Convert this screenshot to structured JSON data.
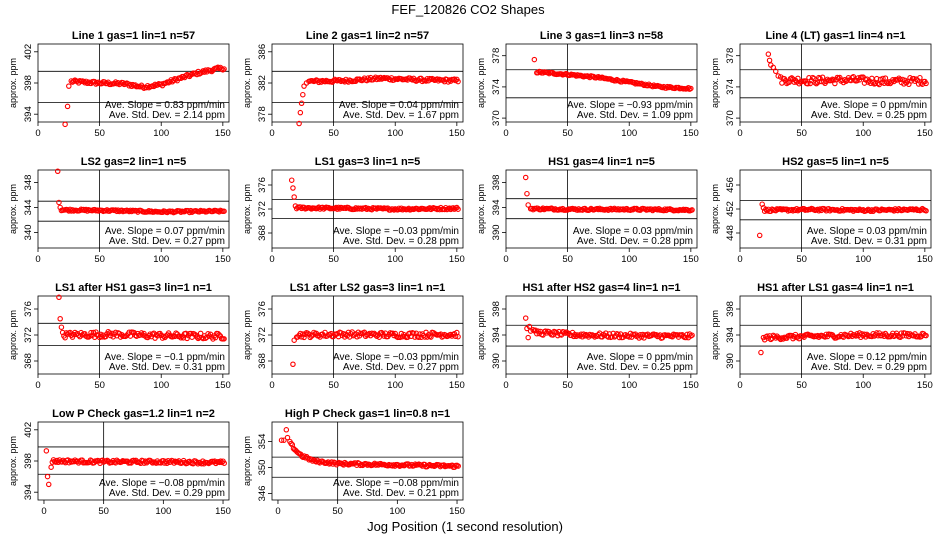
{
  "figure": {
    "title": "FEF_120826  CO2 Shapes",
    "xlabel": "Jog Position (1 second resolution)",
    "colors": {
      "points": "#ff0000",
      "lines": "#000000",
      "background": "#ffffff"
    }
  },
  "chart_data": [
    {
      "type": "scatter",
      "title": "Line 1 gas=1 lin=1 n=57",
      "ylabel": "approx. ppm",
      "xlim": [
        0,
        155
      ],
      "ylim": [
        393,
        403
      ],
      "xticks": [
        0,
        50,
        100,
        150
      ],
      "yticks": [
        394,
        398,
        402
      ],
      "hlines": [
        399.5,
        395.5
      ],
      "vline": 50,
      "annotations": [
        "Ave. Slope = 0.83 ppm/min",
        "Ave. Std. Dev. = 2.14 ppm"
      ],
      "outliers": [
        [
          22,
          392.4
        ],
        [
          24,
          395
        ],
        [
          25,
          397.6
        ]
      ],
      "segments": [
        [
          27,
          398.2
        ],
        [
          50,
          398.0
        ],
        [
          70,
          397.9
        ],
        [
          85,
          397.5
        ],
        [
          100,
          397.8
        ],
        [
          115,
          398.6
        ],
        [
          130,
          399.3
        ],
        [
          145,
          399.8
        ],
        [
          151,
          399.9
        ]
      ],
      "x_start": 27,
      "x_end": 151,
      "step": 1,
      "noise": 0.2
    },
    {
      "type": "scatter",
      "title": "Line 2 gas=1 lin=2 n=57",
      "ylabel": "approx. ppm",
      "xlim": [
        0,
        155
      ],
      "ylim": [
        377,
        387
      ],
      "xticks": [
        0,
        50,
        100,
        150
      ],
      "yticks": [
        378,
        382,
        386
      ],
      "hlines": [
        383.5,
        379.5
      ],
      "vline": 50,
      "annotations": [
        "Ave. Slope = 0.04 ppm/min",
        "Ave. Std. Dev. = 1.67 ppm"
      ],
      "outliers": [
        [
          22,
          376.8
        ],
        [
          23,
          378.2
        ],
        [
          24,
          379.4
        ],
        [
          25,
          380.5
        ],
        [
          26,
          381.6
        ],
        [
          28,
          382.0
        ]
      ],
      "segments": [
        [
          30,
          382.2
        ],
        [
          60,
          382.3
        ],
        [
          90,
          382.6
        ],
        [
          120,
          382.4
        ],
        [
          151,
          382.3
        ]
      ],
      "x_start": 30,
      "x_end": 151,
      "step": 1,
      "noise": 0.2
    },
    {
      "type": "scatter",
      "title": "Line 3 gas=1 lin=3 n=58",
      "ylabel": "approx. ppm",
      "xlim": [
        0,
        155
      ],
      "ylim": [
        369.5,
        379.5
      ],
      "xticks": [
        0,
        50,
        100,
        150
      ],
      "yticks": [
        370,
        374,
        378
      ],
      "hlines": [
        376.2,
        372.6
      ],
      "vline": 50,
      "annotations": [
        "Ave. Slope = −0.93 ppm/min",
        "Ave. Std. Dev. = 1.09 ppm"
      ],
      "outliers": [
        [
          23,
          377.5
        ]
      ],
      "segments": [
        [
          25,
          375.9
        ],
        [
          50,
          375.6
        ],
        [
          75,
          375.2
        ],
        [
          100,
          374.6
        ],
        [
          125,
          374.0
        ],
        [
          150,
          373.8
        ]
      ],
      "x_start": 25,
      "x_end": 150,
      "step": 1,
      "noise": 0.12
    },
    {
      "type": "scatter",
      "title": "Line 4 (LT) gas=1 lin=4 n=1",
      "ylabel": "approx. ppm",
      "xlim": [
        0,
        155
      ],
      "ylim": [
        369.5,
        379.5
      ],
      "xticks": [
        0,
        50,
        100,
        150
      ],
      "yticks": [
        370,
        374,
        378
      ],
      "hlines": [
        376.2,
        372.6
      ],
      "vline": 50,
      "annotations": [
        "Ave. Slope = 0 ppm/min",
        "Ave. Std. Dev. = 0.25 ppm"
      ],
      "outliers": [
        [
          23,
          378.2
        ],
        [
          24,
          377.4
        ],
        [
          25,
          376.8
        ],
        [
          27,
          376.5
        ],
        [
          29,
          376.0
        ],
        [
          31,
          375.4
        ]
      ],
      "segments": [
        [
          33,
          374.9
        ],
        [
          60,
          374.8
        ],
        [
          90,
          374.9
        ],
        [
          120,
          374.7
        ],
        [
          151,
          374.8
        ]
      ],
      "x_start": 33,
      "x_end": 151,
      "step": 1,
      "noise": 0.45
    },
    {
      "type": "scatter",
      "title": "LS2 gas=2 lin=1 n=5",
      "ylabel": "approx. ppm",
      "xlim": [
        0,
        155
      ],
      "ylim": [
        337.5,
        350
      ],
      "xticks": [
        0,
        50,
        100,
        150
      ],
      "yticks": [
        340,
        344,
        348
      ],
      "hlines": [
        345.0,
        341.8
      ],
      "vline": 50,
      "annotations": [
        "Ave. Slope = 0.07 ppm/min",
        "Ave. Std. Dev. = 0.27 ppm"
      ],
      "outliers": [
        [
          16,
          349.8
        ],
        [
          17,
          344.8
        ],
        [
          18,
          344.0
        ],
        [
          19,
          343.5
        ]
      ],
      "segments": [
        [
          20,
          343.6
        ],
        [
          60,
          343.5
        ],
        [
          100,
          343.3
        ],
        [
          151,
          343.4
        ]
      ],
      "x_start": 20,
      "x_end": 151,
      "step": 1,
      "noise": 0.15
    },
    {
      "type": "scatter",
      "title": "LS1 gas=3 lin=1 n=5",
      "ylabel": "approx. ppm",
      "xlim": [
        0,
        155
      ],
      "ylim": [
        365.5,
        378.5
      ],
      "xticks": [
        0,
        50,
        100,
        150
      ],
      "yticks": [
        368,
        372,
        376
      ],
      "hlines": [
        373.6,
        370.4
      ],
      "vline": 50,
      "annotations": [
        "Ave. Slope = −0.03 ppm/min",
        "Ave. Std. Dev. = 0.28 ppm"
      ],
      "outliers": [
        [
          16,
          376.8
        ],
        [
          17,
          375.5
        ],
        [
          18,
          374.0
        ],
        [
          19,
          372.5
        ]
      ],
      "segments": [
        [
          20,
          372.2
        ],
        [
          60,
          372.1
        ],
        [
          100,
          372.0
        ],
        [
          151,
          372.1
        ]
      ],
      "x_start": 20,
      "x_end": 151,
      "step": 1,
      "noise": 0.18
    },
    {
      "type": "scatter",
      "title": "HS1 gas=4 lin=1 n=5",
      "ylabel": "approx. ppm",
      "xlim": [
        0,
        155
      ],
      "ylim": [
        387.5,
        400
      ],
      "xticks": [
        0,
        50,
        100,
        150
      ],
      "yticks": [
        390,
        394,
        398
      ],
      "hlines": [
        395.4,
        392.2
      ],
      "vline": 50,
      "annotations": [
        "Ave. Slope = 0.03 ppm/min",
        "Ave. Std. Dev. = 0.28 ppm"
      ],
      "outliers": [
        [
          16,
          398.8
        ],
        [
          17,
          396.2
        ],
        [
          18,
          394.4
        ]
      ],
      "segments": [
        [
          20,
          393.8
        ],
        [
          60,
          393.7
        ],
        [
          100,
          393.7
        ],
        [
          151,
          393.6
        ]
      ],
      "x_start": 20,
      "x_end": 151,
      "step": 1,
      "noise": 0.16
    },
    {
      "type": "scatter",
      "title": "HS2 gas=5 lin=1 n=5",
      "ylabel": "approx. ppm",
      "xlim": [
        0,
        155
      ],
      "ylim": [
        445.5,
        458.5
      ],
      "xticks": [
        0,
        50,
        100,
        150
      ],
      "yticks": [
        448,
        452,
        456
      ],
      "hlines": [
        453.4,
        450.2
      ],
      "vline": 50,
      "annotations": [
        "Ave. Slope = 0.03 ppm/min",
        "Ave. Std. Dev. = 0.31 ppm"
      ],
      "outliers": [
        [
          16,
          447.6
        ],
        [
          18,
          452.8
        ],
        [
          19,
          452.2
        ]
      ],
      "segments": [
        [
          20,
          451.8
        ],
        [
          60,
          451.9
        ],
        [
          100,
          451.8
        ],
        [
          151,
          451.9
        ]
      ],
      "x_start": 20,
      "x_end": 151,
      "step": 1,
      "noise": 0.2
    },
    {
      "type": "scatter",
      "title": "LS1 after HS1 gas=3 lin=1 n=1",
      "ylabel": "approx. ppm",
      "xlim": [
        0,
        155
      ],
      "ylim": [
        366,
        378
      ],
      "xticks": [
        0,
        50,
        100,
        150
      ],
      "yticks": [
        368,
        372,
        376
      ],
      "hlines": [
        373.8,
        370.4
      ],
      "vline": 50,
      "annotations": [
        "Ave. Slope = −0.1 ppm/min",
        "Ave. Std. Dev. = 0.31 ppm"
      ],
      "outliers": [
        [
          17,
          377.8
        ],
        [
          18,
          374.5
        ],
        [
          19,
          373.2
        ]
      ],
      "segments": [
        [
          20,
          372.0
        ],
        [
          60,
          372.1
        ],
        [
          100,
          371.9
        ],
        [
          151,
          371.8
        ]
      ],
      "x_start": 20,
      "x_end": 151,
      "step": 1,
      "noise": 0.45
    },
    {
      "type": "scatter",
      "title": "LS1 after LS2 gas=3 lin=1 n=1",
      "ylabel": "approx. ppm",
      "xlim": [
        0,
        155
      ],
      "ylim": [
        366,
        378
      ],
      "xticks": [
        0,
        50,
        100,
        150
      ],
      "yticks": [
        368,
        372,
        376
      ],
      "hlines": [
        373.8,
        370.4
      ],
      "vline": 50,
      "annotations": [
        "Ave. Slope = −0.03 ppm/min",
        "Ave. Std. Dev. = 0.27 ppm"
      ],
      "outliers": [
        [
          17,
          367.5
        ],
        [
          18,
          371.2
        ]
      ],
      "segments": [
        [
          20,
          372.0
        ],
        [
          60,
          372.1
        ],
        [
          100,
          372.0
        ],
        [
          151,
          372.1
        ]
      ],
      "x_start": 20,
      "x_end": 151,
      "step": 1,
      "noise": 0.4
    },
    {
      "type": "scatter",
      "title": "HS1 after HS2 gas=4 lin=1 n=1",
      "ylabel": "approx. ppm",
      "xlim": [
        0,
        155
      ],
      "ylim": [
        388,
        400
      ],
      "xticks": [
        0,
        50,
        100,
        150
      ],
      "yticks": [
        390,
        394,
        398
      ],
      "hlines": [
        395.5,
        392.3
      ],
      "vline": 50,
      "annotations": [
        "Ave. Slope = 0 ppm/min",
        "Ave. Std. Dev. = 0.25 ppm"
      ],
      "outliers": [
        [
          16,
          396.6
        ],
        [
          17,
          395.0
        ],
        [
          18,
          393.6
        ],
        [
          19,
          395.3
        ],
        [
          20,
          394.6
        ],
        [
          22,
          394.8
        ]
      ],
      "segments": [
        [
          23,
          394.4
        ],
        [
          60,
          394.0
        ],
        [
          100,
          393.9
        ],
        [
          151,
          393.8
        ]
      ],
      "x_start": 23,
      "x_end": 151,
      "step": 1,
      "noise": 0.35
    },
    {
      "type": "scatter",
      "title": "HS1 after LS1 gas=4 lin=1 n=1",
      "ylabel": "approx. ppm",
      "xlim": [
        0,
        155
      ],
      "ylim": [
        388,
        400
      ],
      "xticks": [
        0,
        50,
        100,
        150
      ],
      "yticks": [
        390,
        394,
        398
      ],
      "hlines": [
        395.5,
        392.3
      ],
      "vline": 50,
      "annotations": [
        "Ave. Slope = 0.12 ppm/min",
        "Ave. Std. Dev. = 0.29 ppm"
      ],
      "outliers": [
        [
          17,
          391.3
        ],
        [
          19,
          393.6
        ]
      ],
      "segments": [
        [
          20,
          393.6
        ],
        [
          60,
          393.8
        ],
        [
          100,
          394.0
        ],
        [
          151,
          394.0
        ]
      ],
      "x_start": 20,
      "x_end": 151,
      "step": 1,
      "noise": 0.35
    },
    {
      "type": "scatter",
      "title": "Low P Check gas=1.2 lin=1 n=2",
      "ylabel": "approx. ppm",
      "xlim": [
        -5,
        155
      ],
      "ylim": [
        393,
        403
      ],
      "xticks": [
        0,
        50,
        100,
        150
      ],
      "yticks": [
        394,
        398,
        402
      ],
      "hlines": [
        399.8,
        396.3
      ],
      "vline": 50,
      "annotations": [
        "Ave. Slope = −0.08 ppm/min",
        "Ave. Std. Dev. = 0.29 ppm"
      ],
      "outliers": [
        [
          2,
          399.3
        ],
        [
          3,
          396.0
        ],
        [
          4,
          395.0
        ],
        [
          6,
          397.2
        ]
      ],
      "segments": [
        [
          7,
          398.0
        ],
        [
          50,
          397.9
        ],
        [
          100,
          397.9
        ],
        [
          151,
          397.8
        ]
      ],
      "x_start": 7,
      "x_end": 151,
      "step": 1,
      "noise": 0.2
    },
    {
      "type": "scatter",
      "title": "High P Check gas=1 lin=0.8 n=1",
      "ylabel": "approx. ppm",
      "xlim": [
        -5,
        155
      ],
      "ylim": [
        345,
        357
      ],
      "xticks": [
        0,
        50,
        100,
        150
      ],
      "yticks": [
        346,
        350,
        354
      ],
      "hlines": [
        351.6,
        348.5
      ],
      "vline": 50,
      "annotations": [
        "Ave. Slope = −0.08 ppm/min",
        "Ave. Std. Dev. = 0.21 ppm"
      ],
      "outliers": [
        [
          3,
          354.2
        ],
        [
          5,
          354.2
        ],
        [
          7,
          355.8
        ],
        [
          8,
          354.6
        ]
      ],
      "segments": [
        [
          10,
          353.8
        ],
        [
          15,
          352.6
        ],
        [
          20,
          351.8
        ],
        [
          30,
          351.0
        ],
        [
          50,
          350.6
        ],
        [
          100,
          350.4
        ],
        [
          151,
          350.2
        ]
      ],
      "x_start": 10,
      "x_end": 151,
      "step": 1,
      "noise": 0.2
    }
  ]
}
